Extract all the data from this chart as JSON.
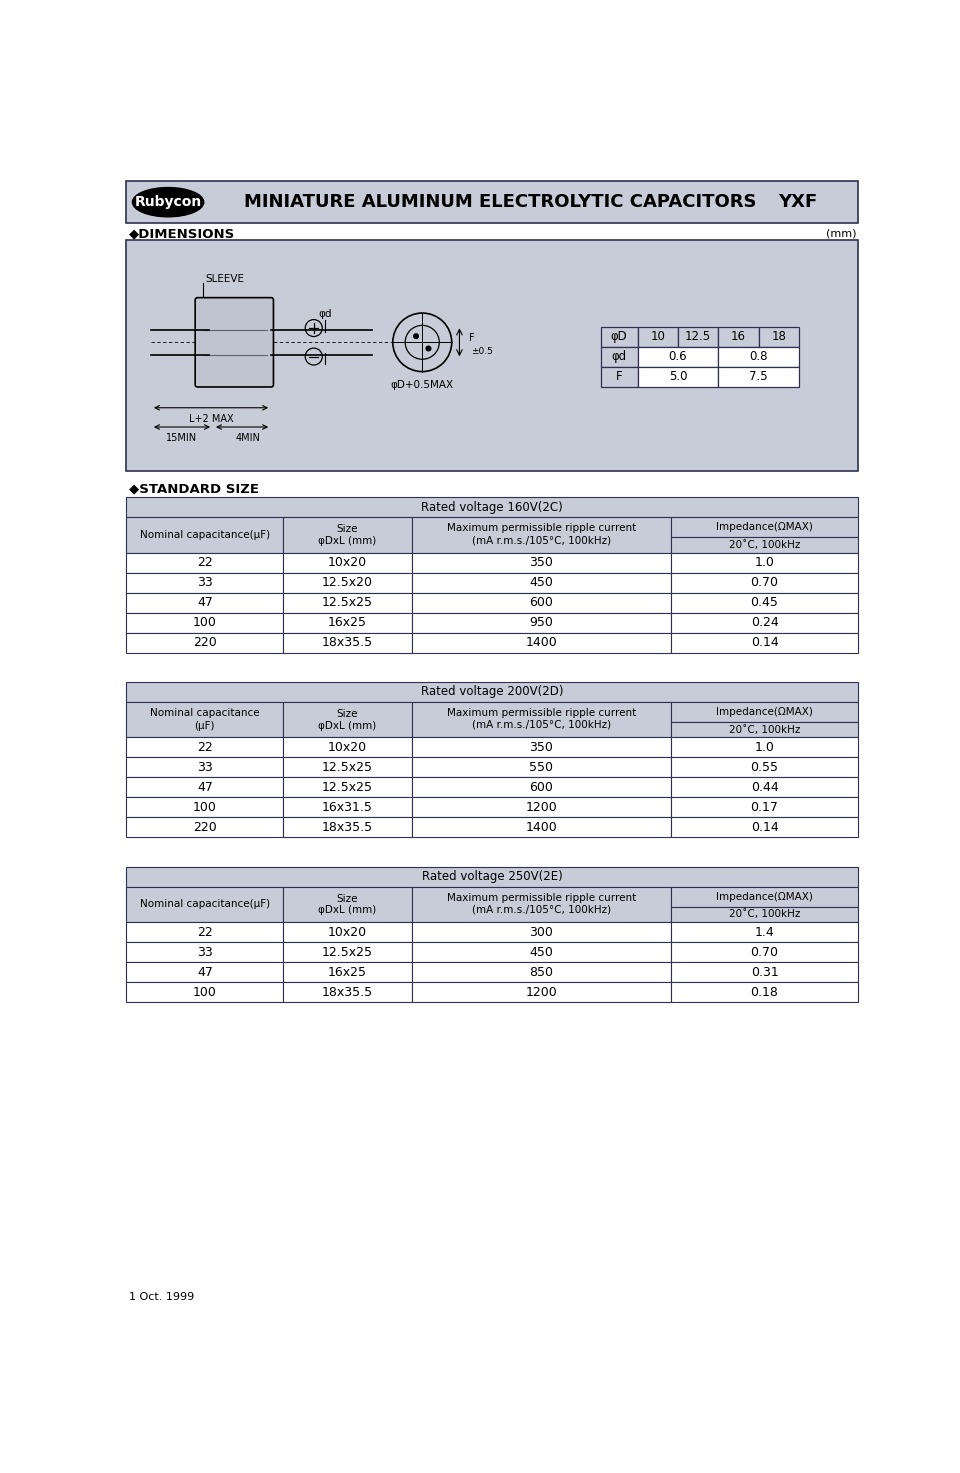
{
  "bg_color": "#c8ccd8",
  "dim_box_color": "#c8ccd8",
  "white": "#ffffff",
  "black": "#000000",
  "title_text": "MINIATURE ALUMINUM ELECTROLYTIC CAPACITORS",
  "series_text": "YXF",
  "brand_text": "Rubycon",
  "dimensions_title": "◆DIMENSIONS",
  "dimensions_unit": "(mm)",
  "standard_size_title": "◆STANDARD SIZE",
  "table1_title": "Rated voltage 160V(2C)",
  "table1_data": [
    [
      "22",
      "10x20",
      "350",
      "1.0"
    ],
    [
      "33",
      "12.5x20",
      "450",
      "0.70"
    ],
    [
      "47",
      "12.5x25",
      "600",
      "0.45"
    ],
    [
      "100",
      "16x25",
      "950",
      "0.24"
    ],
    [
      "220",
      "18x35.5",
      "1400",
      "0.14"
    ]
  ],
  "table2_title": "Rated voltage 200V(2D)",
  "table2_header_cap": "Nominal capacitance\n(μF)",
  "table2_data": [
    [
      "22",
      "10x20",
      "350",
      "1.0"
    ],
    [
      "33",
      "12.5x25",
      "550",
      "0.55"
    ],
    [
      "47",
      "12.5x25",
      "600",
      "0.44"
    ],
    [
      "100",
      "16x31.5",
      "1200",
      "0.17"
    ],
    [
      "220",
      "18x35.5",
      "1400",
      "0.14"
    ]
  ],
  "table3_title": "Rated voltage 250V(2E)",
  "table3_data": [
    [
      "22",
      "10x20",
      "300",
      "1.4"
    ],
    [
      "33",
      "12.5x25",
      "450",
      "0.70"
    ],
    [
      "47",
      "16x25",
      "850",
      "0.31"
    ],
    [
      "100",
      "18x35.5",
      "1200",
      "0.18"
    ]
  ],
  "footer_text": "1 Oct. 1999"
}
